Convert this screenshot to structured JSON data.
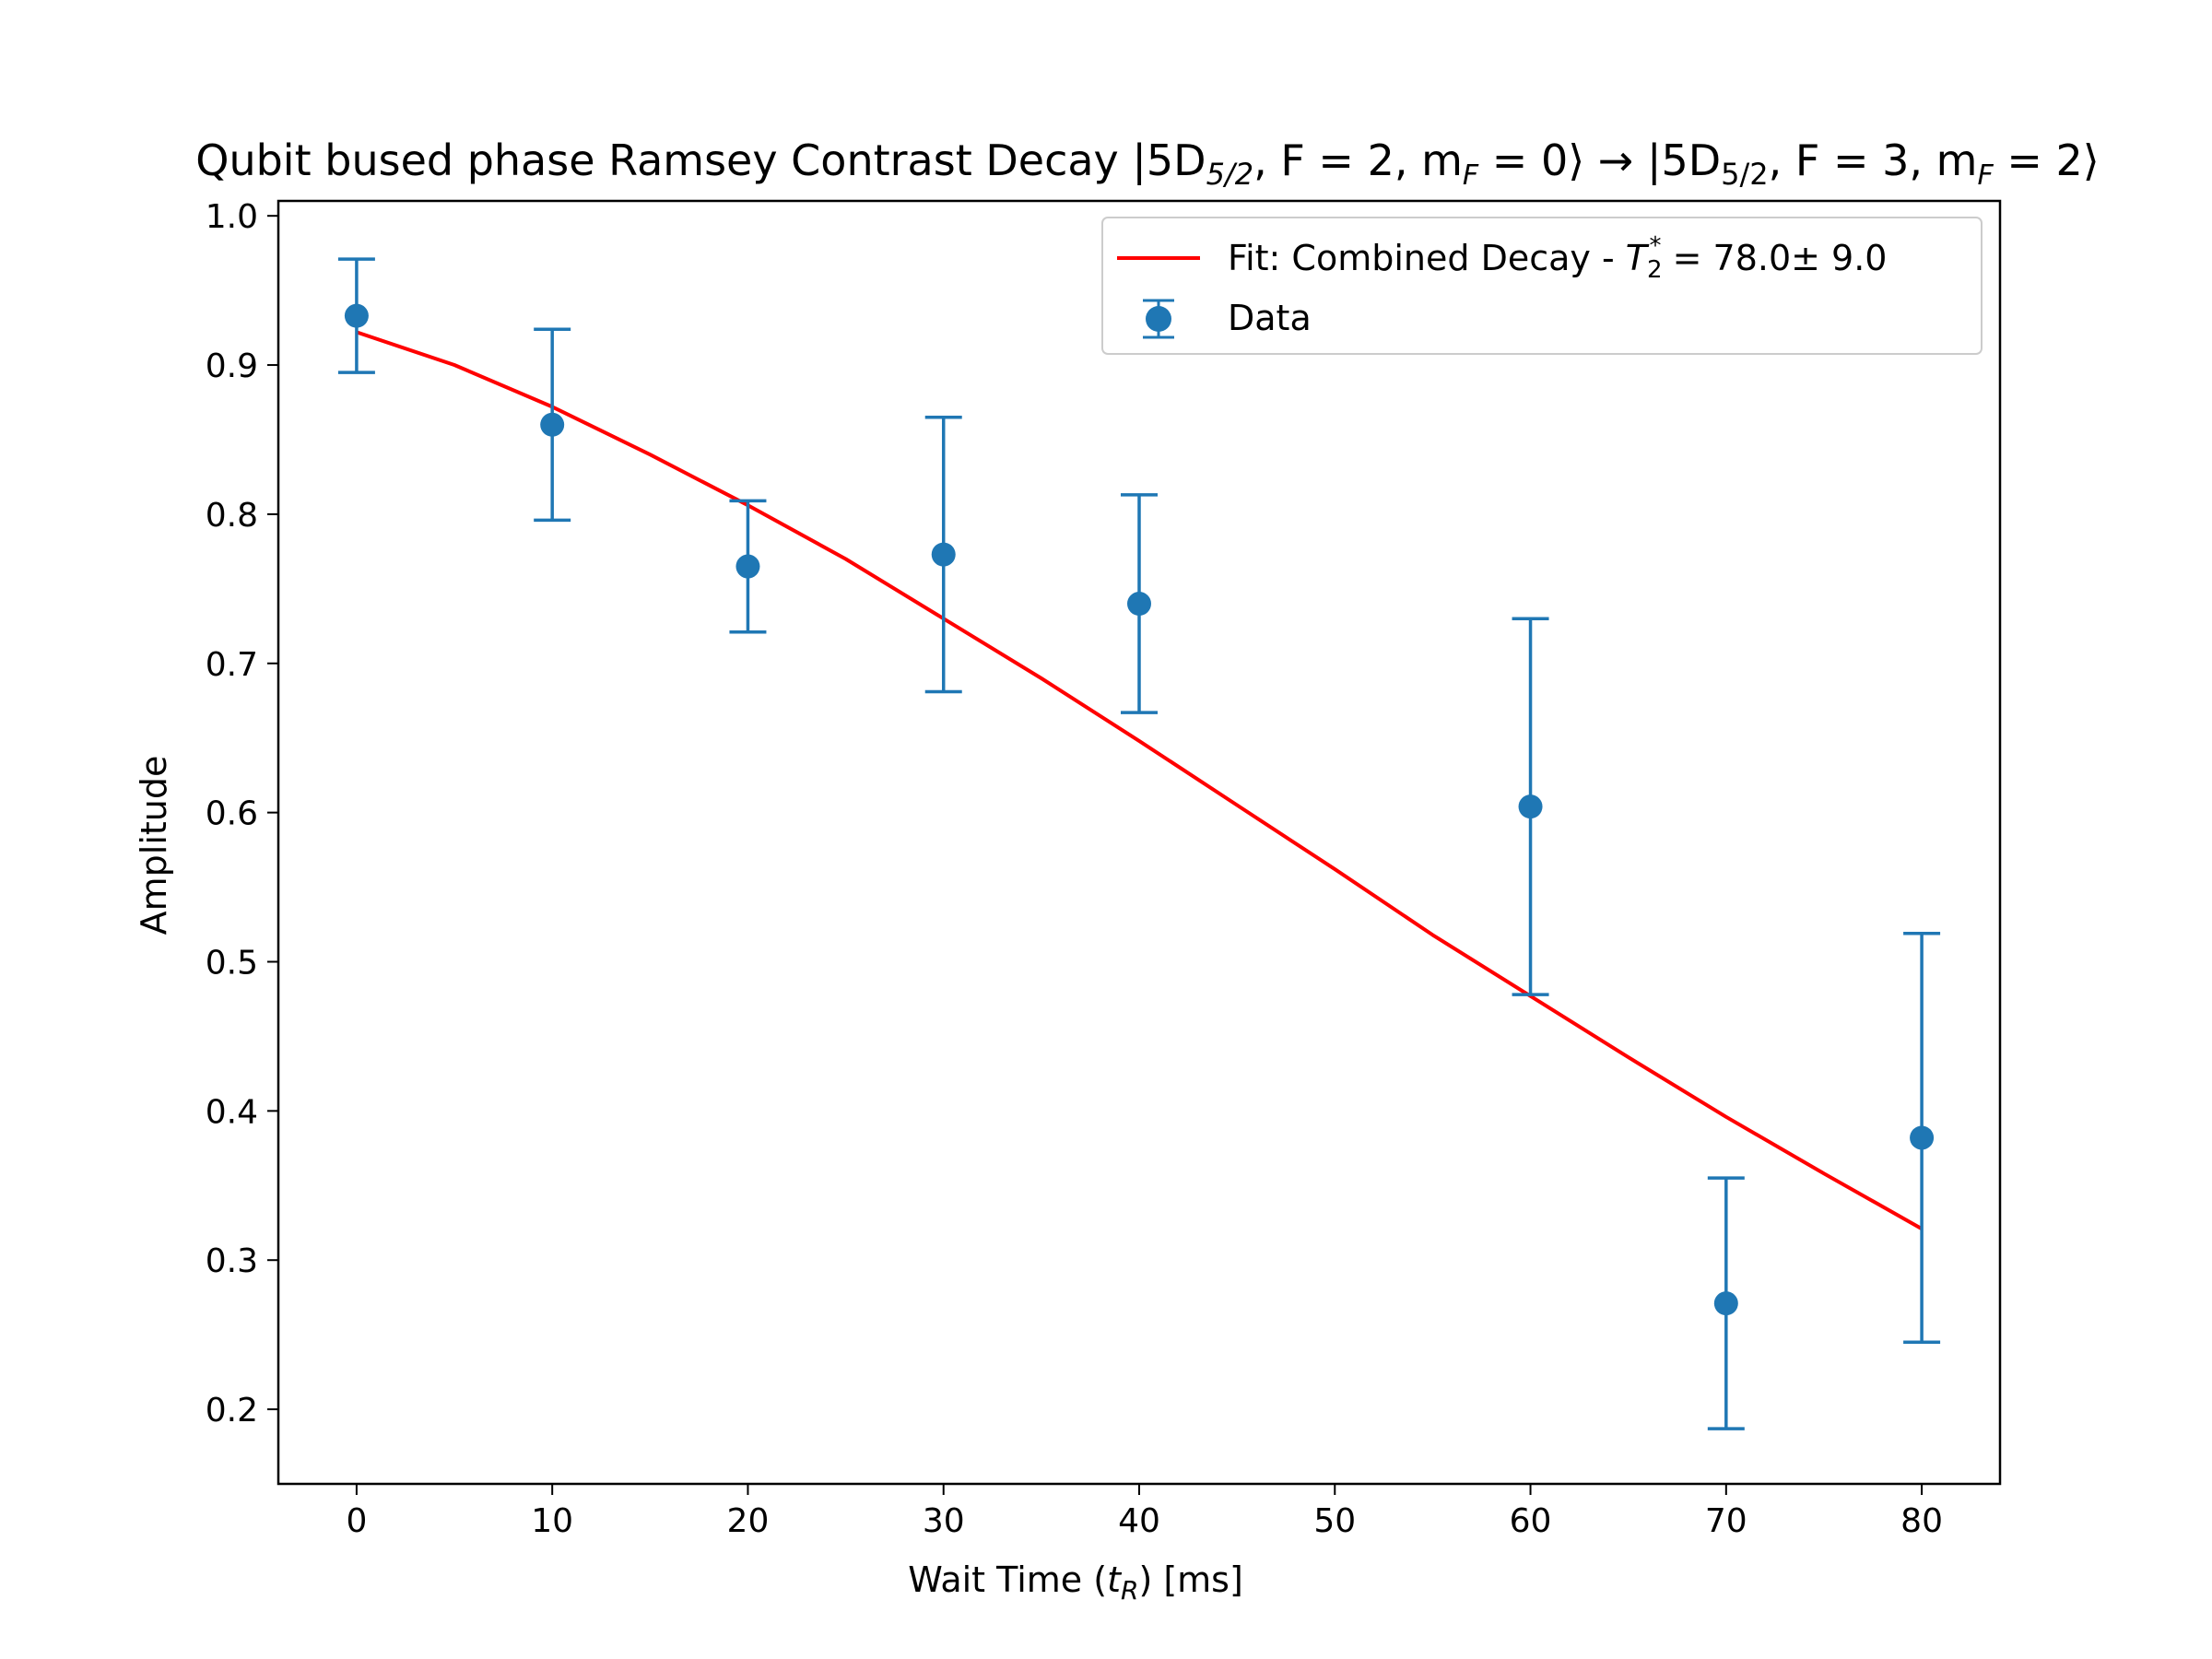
{
  "chart_data": {
    "type": "scatter",
    "title": "Qubit bused phase Ramsey Contrast Decay |5D5/2, F = 2, mF = 0⟩ → |5D5/2, F = 3, mF = 2⟩",
    "title_parts": {
      "prefix": "Qubit bused phase Ramsey Contrast Decay |5D",
      "sub1": "5/2",
      "mid1": ", F = 2, m",
      "sub2": "F",
      "mid2": " = 0⟩ → |5D",
      "sub3": "5/2",
      "mid3": ", F = 3, m",
      "sub4": "F",
      "suffix": " = 2⟩"
    },
    "xlabel": "Wait Time (tR) [ms]",
    "xlabel_parts": {
      "prefix": "Wait Time (",
      "var": "t",
      "sub": "R",
      "suffix": ") [ms]"
    },
    "ylabel": "Amplitude",
    "xlim": [
      -4,
      84
    ],
    "ylim": [
      0.15,
      1.01
    ],
    "xticks": [
      0,
      10,
      20,
      30,
      40,
      50,
      60,
      70,
      80
    ],
    "xtick_labels": [
      "0",
      "10",
      "20",
      "30",
      "40",
      "50",
      "60",
      "70",
      "80"
    ],
    "yticks": [
      0.2,
      0.3,
      0.4,
      0.5,
      0.6,
      0.7,
      0.8,
      0.9,
      1.0
    ],
    "ytick_labels": [
      "0.2",
      "0.3",
      "0.4",
      "0.5",
      "0.6",
      "0.7",
      "0.8",
      "0.9",
      "1.0"
    ],
    "grid": false,
    "legend_position": "top-right",
    "series": [
      {
        "name": "Data",
        "kind": "errorbar",
        "color": "#1f77b4",
        "x": [
          0,
          10,
          20,
          30,
          40,
          60,
          70,
          80
        ],
        "y": [
          0.933,
          0.86,
          0.765,
          0.773,
          0.74,
          0.604,
          0.271,
          0.382
        ],
        "err": [
          0.038,
          0.064,
          0.044,
          0.092,
          0.073,
          0.126,
          0.084,
          0.137
        ]
      },
      {
        "name": "Fit: Combined Decay - T2* = 78.0± 9.0",
        "name_parts": {
          "prefix": "Fit: Combined Decay - ",
          "var": "T",
          "sub": "2",
          "sup": "*",
          "suffix": " = 78.0± 9.0"
        },
        "kind": "line",
        "color": "#ff0000",
        "x": [
          0,
          5,
          10,
          15,
          20,
          25,
          30,
          35,
          40,
          45,
          50,
          55,
          60,
          65,
          70,
          75,
          80
        ],
        "y": [
          0.922,
          0.9,
          0.872,
          0.84,
          0.806,
          0.77,
          0.73,
          0.69,
          0.648,
          0.605,
          0.562,
          0.518,
          0.477,
          0.436,
          0.396,
          0.358,
          0.321
        ]
      }
    ]
  }
}
